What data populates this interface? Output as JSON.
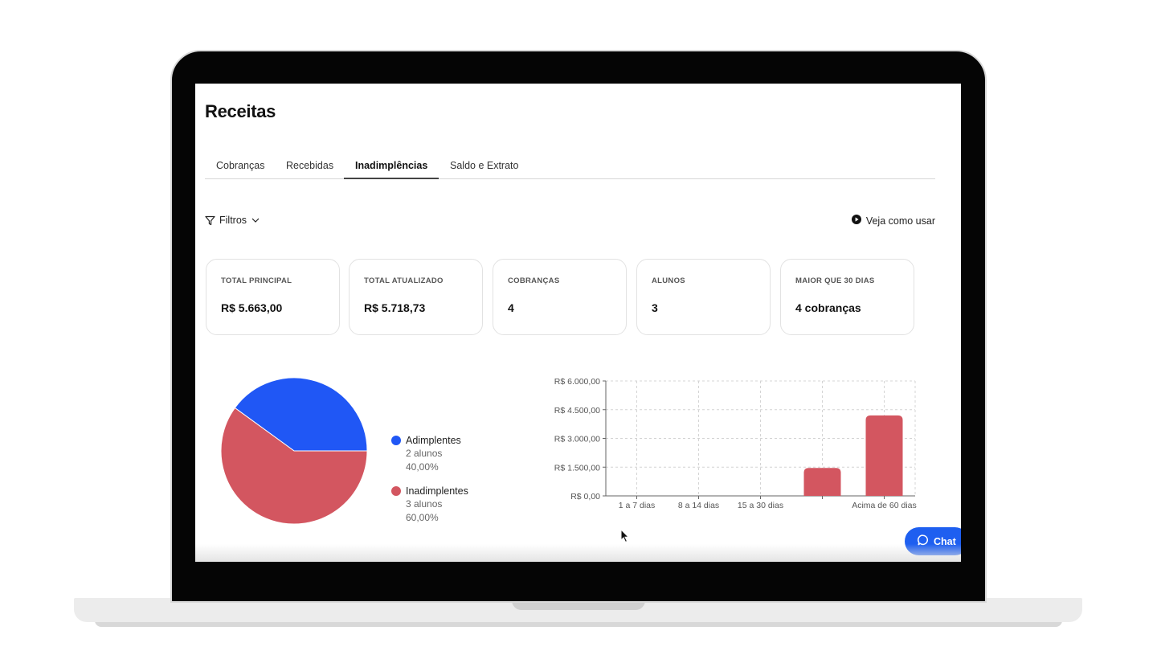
{
  "page": {
    "title": "Receitas"
  },
  "tabs": [
    {
      "label": "Cobranças",
      "active": false
    },
    {
      "label": "Recebidas",
      "active": false
    },
    {
      "label": "Inadimplências",
      "active": true
    },
    {
      "label": "Saldo e Extrato",
      "active": false
    }
  ],
  "toolbar": {
    "filters_label": "Filtros",
    "help_label": "Veja como usar"
  },
  "cards": [
    {
      "label": "TOTAL PRINCIPAL",
      "value": "R$ 5.663,00"
    },
    {
      "label": "TOTAL ATUALIZADO",
      "value": "R$ 5.718,73"
    },
    {
      "label": "COBRANÇAS",
      "value": "4"
    },
    {
      "label": "ALUNOS",
      "value": "3"
    },
    {
      "label": "MAIOR QUE 30 DIAS",
      "value": "4 cobranças"
    }
  ],
  "pie_legend": [
    {
      "name": "Adimplentes",
      "count": "2 alunos",
      "percent": "40,00%",
      "color": "#2057f5"
    },
    {
      "name": "Inadimplentes",
      "count": "3 alunos",
      "percent": "60,00%",
      "color": "#d35660"
    }
  ],
  "chat": {
    "label": "Chat"
  },
  "colors": {
    "accent": "#1e5ff0",
    "overdue": "#d35660",
    "ok": "#2057f5"
  },
  "chart_data": [
    {
      "type": "pie",
      "title": "",
      "labels": [
        "Adimplentes",
        "Inadimplentes"
      ],
      "values": [
        40,
        60
      ],
      "colors": [
        "#2057f5",
        "#d35660"
      ],
      "legend": "right"
    },
    {
      "type": "bar",
      "title": "",
      "xlabel": "",
      "ylabel": "",
      "categories": [
        "1 a 7 dias",
        "8 a 14 dias",
        "15 a 30 dias",
        "",
        "Acima de 60 dias"
      ],
      "values": [
        0,
        0,
        0,
        1460,
        4200
      ],
      "ylim": [
        0,
        6000
      ],
      "yticks": [
        0,
        1500,
        3000,
        4500,
        6000
      ],
      "ytick_labels": [
        "R$ 0,00",
        "R$ 1.500,00",
        "R$ 3.000,00",
        "R$ 4.500,00",
        "R$ 6.000,00"
      ],
      "grid": true,
      "color": "#d35660"
    }
  ]
}
